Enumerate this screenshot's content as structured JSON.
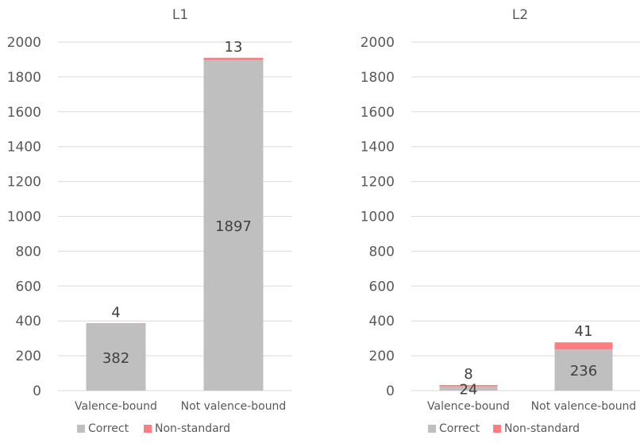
{
  "chart_data": [
    {
      "type": "bar",
      "stacked": true,
      "title": "L1",
      "categories": [
        "Valence-bound",
        "Not valence-bound"
      ],
      "series": [
        {
          "name": "Correct",
          "values": [
            382,
            1897
          ],
          "color": "#bfbfbf"
        },
        {
          "name": "Non-standard",
          "values": [
            4,
            13
          ],
          "color": "#ff7c80"
        }
      ],
      "ylim": [
        0,
        2000
      ],
      "yticks": [
        "0",
        "200",
        "400",
        "600",
        "800",
        "1000",
        "1200",
        "1400",
        "1600",
        "1800",
        "2000"
      ],
      "grid": true,
      "legend": "bottom"
    },
    {
      "type": "bar",
      "stacked": true,
      "title": "L2",
      "categories": [
        "Valence-bound",
        "Not valence-bound"
      ],
      "series": [
        {
          "name": "Correct",
          "values": [
            24,
            236
          ],
          "color": "#bfbfbf"
        },
        {
          "name": "Non-standard",
          "values": [
            8,
            41
          ],
          "color": "#ff7c80"
        }
      ],
      "ylim": [
        0,
        2000
      ],
      "yticks": [
        "0",
        "200",
        "400",
        "600",
        "800",
        "1000",
        "1200",
        "1400",
        "1600",
        "1800",
        "2000"
      ],
      "grid": true,
      "legend": "bottom"
    }
  ]
}
